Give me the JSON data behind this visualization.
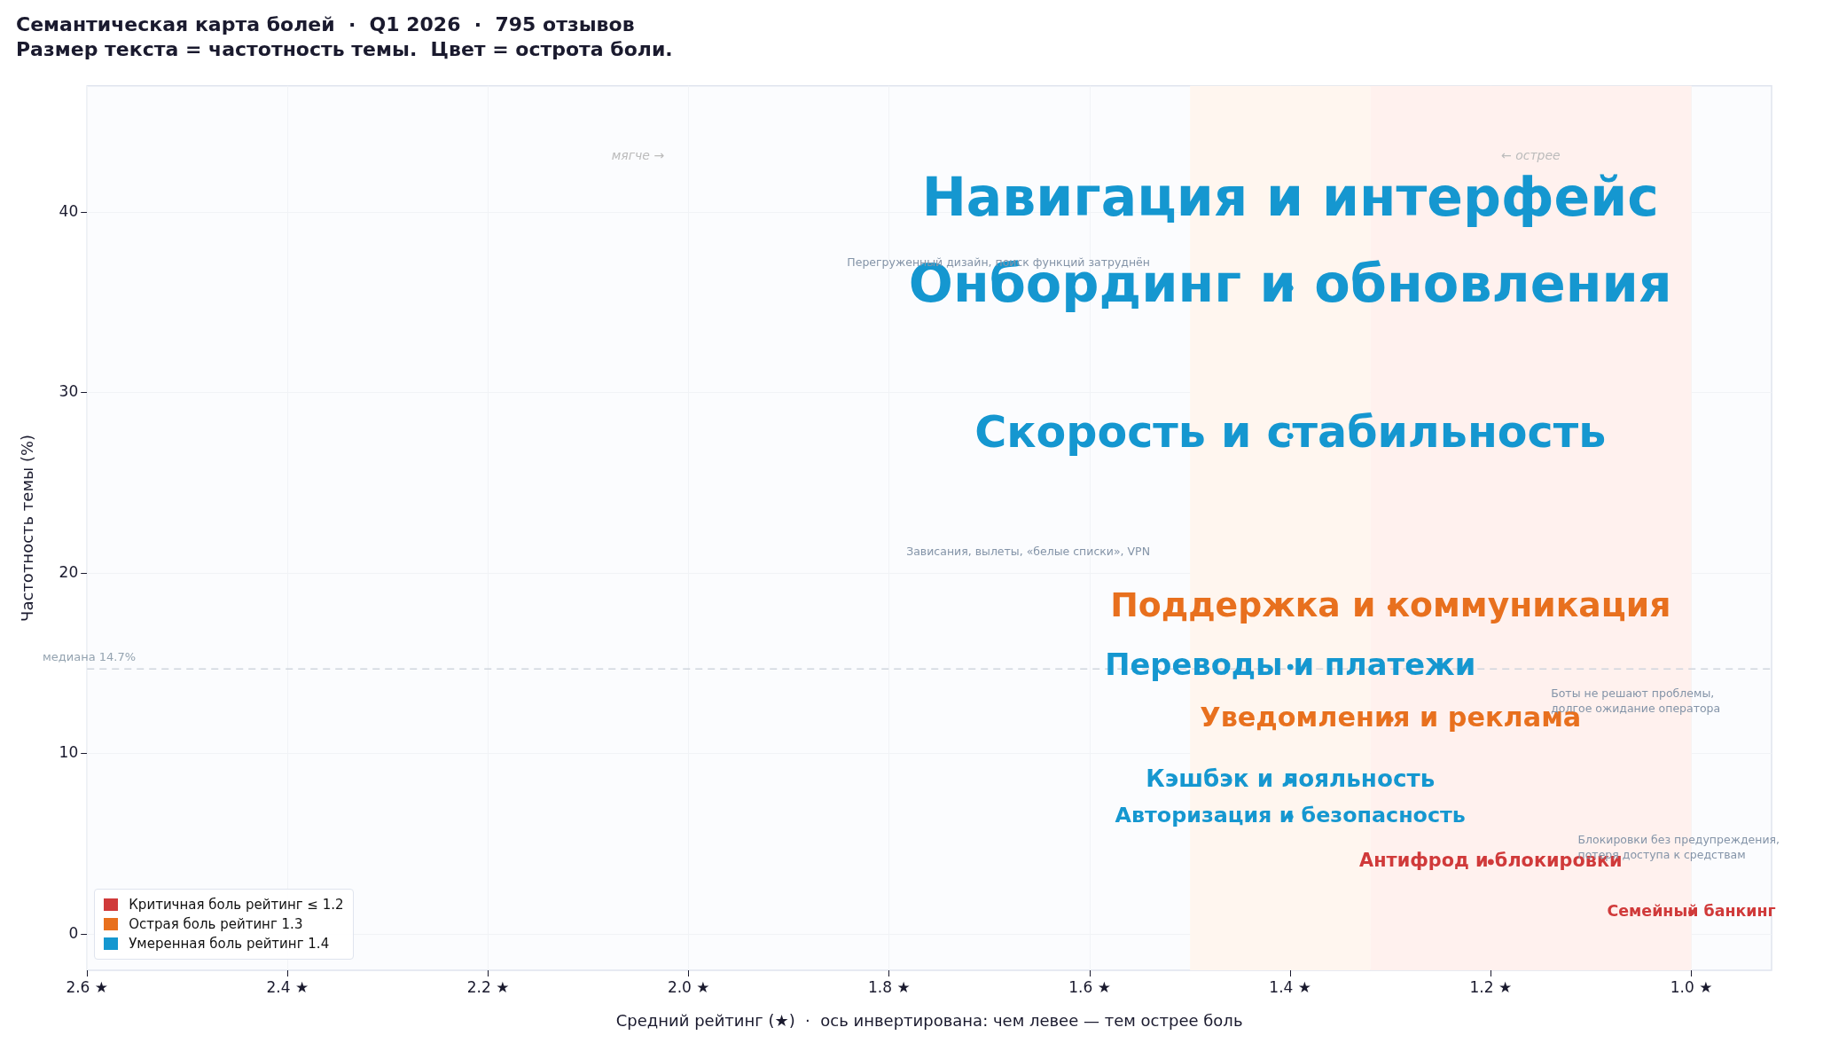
{
  "chart_data": {
    "type": "scatter",
    "title": "Семантическая карта болей  ·  Q1 2026  ·  795 отзывов",
    "subtitle": "Размер текста = частотность темы.  Цвет = острота боли.",
    "xlabel": "Средний рейтинг (★)  ·  ось инвертирована: чем левее — тем острее боль",
    "ylabel": "Частотность темы (%)",
    "xlim": [
      2.6,
      0.92
    ],
    "xticks": [
      {
        "value": 2.6,
        "label": "2.6 ★"
      },
      {
        "value": 2.4,
        "label": "2.4 ★"
      },
      {
        "value": 2.2,
        "label": "2.2 ★"
      },
      {
        "value": 2.0,
        "label": "2.0 ★"
      },
      {
        "value": 1.8,
        "label": "1.8 ★"
      },
      {
        "value": 1.6,
        "label": "1.6 ★"
      },
      {
        "value": 1.4,
        "label": "1.4 ★"
      },
      {
        "value": 1.2,
        "label": "1.2 ★"
      },
      {
        "value": 1.0,
        "label": "1.0 ★"
      }
    ],
    "ylim": [
      -2,
      47
    ],
    "yticks": [
      0,
      10,
      20,
      30,
      40
    ],
    "grid": true,
    "legend": "bottom left",
    "marker": "circle",
    "series": [
      {
        "name": "Критичная боль  рейтинг ≤ 1.2",
        "color": "#d03a3a",
        "x": [
          1.2,
          1.0
        ],
        "values": [
          4.0,
          1.2
        ],
        "value_labels": [
          "Антифрод и блокировки",
          "Семейный банкинг"
        ]
      },
      {
        "name": "Острая боль  рейтинг 1.3",
        "color": "#e8701e",
        "x": [
          1.3,
          1.3
        ],
        "values": [
          18.1,
          11.9
        ],
        "value_labels": [
          "Поддержка и коммуникация",
          "Уведомления и реклама"
        ]
      },
      {
        "name": "Умеренная боль  рейтинг 1.4",
        "color": "#1597d0",
        "x": [
          1.4,
          1.4,
          1.4,
          1.4,
          1.4,
          1.4
        ],
        "values": [
          40.6,
          35.8,
          27.6,
          14.8,
          8.5,
          6.5
        ],
        "value_labels": [
          "Навигация и интерфейс",
          "Онбординг и обновления",
          "Скорость и стабильность",
          "Переводы и платежи",
          "Кэшбэк и лояльность",
          "Авторизация и безопасность"
        ]
      }
    ],
    "bands": [
      {
        "axis": "x",
        "from": 1.5,
        "to": 1.32,
        "color": "#fff6ef"
      },
      {
        "axis": "x",
        "from": 1.32,
        "to": 1.0,
        "color": "#fff1ee"
      }
    ],
    "ref_lines": [
      {
        "axis": "y",
        "value": 14.7,
        "label": "медиана 14.7%",
        "color": "#d0d5dd",
        "line_style": "dashed"
      }
    ],
    "annotations": [
      "мягче →",
      "← острее",
      "Перегруженный дизайн, поиск функций затруднён",
      "Зависания, вылеты, «белые списки», VPN",
      "Боты не решают проблемы,\nдолгое ожидание оператора",
      "Блокировки без предупреждения,\nпотеря доступа к средствам"
    ]
  }
}
